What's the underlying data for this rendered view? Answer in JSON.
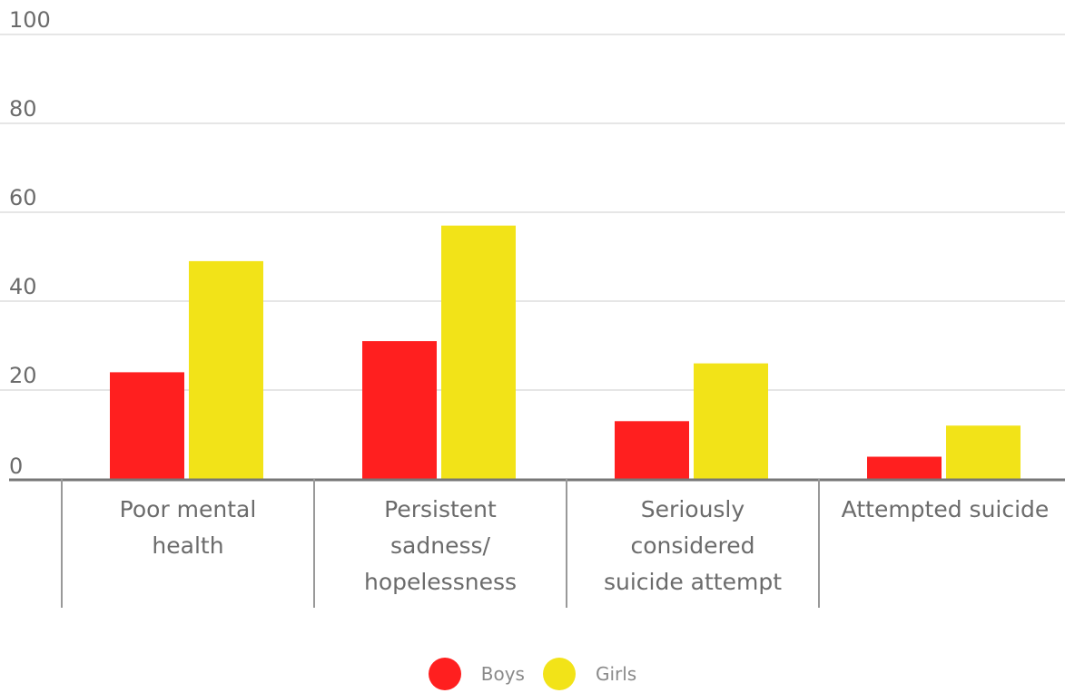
{
  "chart_data": {
    "type": "bar",
    "categories": [
      [
        "Poor mental",
        "health"
      ],
      [
        "Persistent",
        "sadness/",
        "hopelessness"
      ],
      [
        "Seriously",
        "considered",
        "suicide attempt"
      ],
      [
        "Attempted suicide"
      ]
    ],
    "series": [
      {
        "name": "Boys",
        "color": "#ff1f1f",
        "values": [
          24,
          31,
          13,
          5
        ]
      },
      {
        "name": "Girls",
        "color": "#f2e318",
        "values": [
          49,
          57,
          26,
          12
        ]
      }
    ],
    "yticks": [
      "0",
      "20",
      "40",
      "60",
      "80",
      "100"
    ],
    "ylim": [
      0,
      100
    ],
    "grid": true,
    "legend_position": "bottom-center",
    "title": "",
    "xlabel": "",
    "ylabel": ""
  },
  "legend": {
    "boys_label": "Boys",
    "girls_label": "Girls"
  }
}
